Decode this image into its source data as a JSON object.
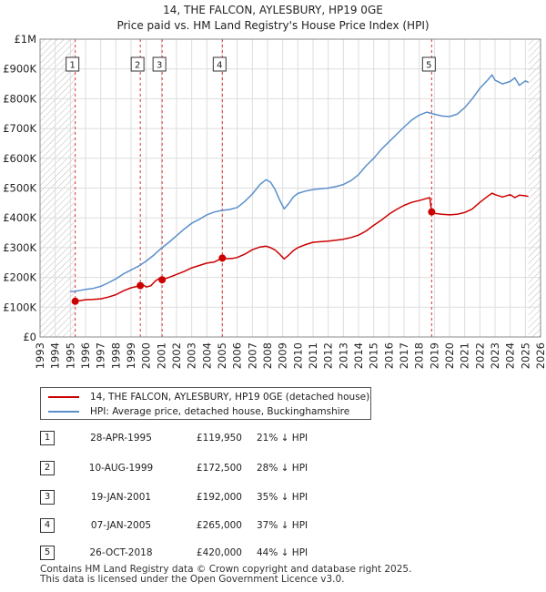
{
  "title": {
    "line1": "14, THE FALCON, AYLESBURY, HP19 0GE",
    "line2": "Price paid vs. HM Land Registry's House Price Index (HPI)"
  },
  "colors": {
    "price_paid": "#cc0000",
    "hpi": "#5b8fcb",
    "hatch": "#bbbbbb",
    "marker_line": "#dd3333",
    "grid": "#dddddd"
  },
  "chart_data": {
    "type": "line",
    "title": "14, THE FALCON, AYLESBURY, HP19 0GE — Price paid vs. HM Land Registry's House Price Index (HPI)",
    "xlabel": "",
    "ylabel": "",
    "xlim": [
      1993,
      2026
    ],
    "ylim": [
      0,
      1000000
    ],
    "x_ticks": [
      1993,
      1994,
      1995,
      1996,
      1997,
      1998,
      1999,
      2000,
      2001,
      2002,
      2003,
      2004,
      2005,
      2006,
      2007,
      2008,
      2009,
      2010,
      2011,
      2012,
      2013,
      2014,
      2015,
      2016,
      2017,
      2018,
      2019,
      2020,
      2021,
      2022,
      2023,
      2024,
      2025,
      2026
    ],
    "y_ticks": [
      {
        "value": 0,
        "label": "£0"
      },
      {
        "value": 100000,
        "label": "£100K"
      },
      {
        "value": 200000,
        "label": "£200K"
      },
      {
        "value": 300000,
        "label": "£300K"
      },
      {
        "value": 400000,
        "label": "£400K"
      },
      {
        "value": 500000,
        "label": "£500K"
      },
      {
        "value": 600000,
        "label": "£600K"
      },
      {
        "value": 700000,
        "label": "£700K"
      },
      {
        "value": 800000,
        "label": "£800K"
      },
      {
        "value": 900000,
        "label": "£900K"
      },
      {
        "value": 1000000,
        "label": "£1M"
      }
    ],
    "grid": true,
    "hatched_ranges": [
      [
        1993,
        1995.32
      ],
      [
        2025.2,
        2026
      ]
    ],
    "series": [
      {
        "name": "14, THE FALCON, AYLESBURY, HP19 0GE (detached house)",
        "color": "#cc0000",
        "x": [
          1995.32,
          1995.6,
          1996,
          1996.5,
          1997,
          1997.5,
          1998,
          1998.5,
          1999,
          1999.61,
          1999.8,
          2000,
          2000.3,
          2000.6,
          2000.9,
          2001.05,
          2001.5,
          2002,
          2002.5,
          2003,
          2003.5,
          2004,
          2004.5,
          2005.02,
          2005.3,
          2005.7,
          2006,
          2006.5,
          2007,
          2007.5,
          2007.9,
          2008.2,
          2008.5,
          2008.8,
          2009.1,
          2009.4,
          2009.7,
          2010,
          2010.5,
          2011,
          2011.5,
          2012,
          2012.5,
          2013,
          2013.5,
          2014,
          2014.5,
          2015,
          2015.5,
          2016,
          2016.5,
          2017,
          2017.5,
          2018,
          2018.4,
          2018.7,
          2018.82,
          2019,
          2019.5,
          2020,
          2020.5,
          2021,
          2021.5,
          2022,
          2022.5,
          2022.8,
          2023,
          2023.5,
          2024,
          2024.3,
          2024.6,
          2025,
          2025.2
        ],
        "y": [
          119950,
          122000,
          125000,
          126000,
          128000,
          134000,
          142000,
          155000,
          165000,
          172500,
          175000,
          168000,
          172000,
          188000,
          198000,
          192000,
          200000,
          210000,
          220000,
          232000,
          240000,
          248000,
          252000,
          265000,
          263000,
          264000,
          267000,
          278000,
          293000,
          302000,
          305000,
          300000,
          292000,
          278000,
          262000,
          275000,
          290000,
          300000,
          310000,
          318000,
          320000,
          322000,
          325000,
          328000,
          334000,
          342000,
          356000,
          375000,
          392000,
          412000,
          428000,
          442000,
          452000,
          458000,
          464000,
          468000,
          420000,
          415000,
          412000,
          410000,
          412000,
          418000,
          430000,
          452000,
          472000,
          483000,
          478000,
          470000,
          478000,
          468000,
          476000,
          474000,
          472000
        ]
      },
      {
        "name": "HPI: Average price, detached house, Buckinghamshire",
        "color": "#5b8fcb",
        "x": [
          1995,
          1995.5,
          1996,
          1996.5,
          1997,
          1997.5,
          1998,
          1998.5,
          1999,
          1999.5,
          2000,
          2000.5,
          2001,
          2001.5,
          2002,
          2002.5,
          2003,
          2003.5,
          2004,
          2004.5,
          2005,
          2005.5,
          2006,
          2006.5,
          2007,
          2007.5,
          2007.9,
          2008.2,
          2008.5,
          2008.8,
          2009.1,
          2009.4,
          2009.7,
          2010,
          2010.5,
          2011,
          2011.5,
          2012,
          2012.5,
          2013,
          2013.5,
          2014,
          2014.5,
          2015,
          2015.5,
          2016,
          2016.5,
          2017,
          2017.5,
          2018,
          2018.5,
          2019,
          2019.5,
          2020,
          2020.5,
          2021,
          2021.5,
          2022,
          2022.5,
          2022.8,
          2023,
          2023.5,
          2024,
          2024.3,
          2024.6,
          2025,
          2025.2
        ],
        "y": [
          152000,
          155000,
          160000,
          163000,
          170000,
          182000,
          195000,
          212000,
          225000,
          238000,
          255000,
          275000,
          298000,
          318000,
          340000,
          362000,
          382000,
          395000,
          410000,
          420000,
          425000,
          428000,
          435000,
          455000,
          480000,
          512000,
          528000,
          520000,
          495000,
          460000,
          430000,
          448000,
          470000,
          482000,
          490000,
          495000,
          498000,
          500000,
          505000,
          512000,
          525000,
          545000,
          575000,
          600000,
          630000,
          655000,
          680000,
          705000,
          728000,
          745000,
          755000,
          748000,
          742000,
          740000,
          748000,
          770000,
          800000,
          835000,
          862000,
          880000,
          862000,
          850000,
          858000,
          870000,
          845000,
          860000,
          855000
        ]
      }
    ],
    "sales": [
      {
        "num": "1",
        "x": 1995.32,
        "price": 119950
      },
      {
        "num": "2",
        "x": 1999.61,
        "price": 172500
      },
      {
        "num": "3",
        "x": 2001.05,
        "price": 192000
      },
      {
        "num": "4",
        "x": 2005.02,
        "price": 265000
      },
      {
        "num": "5",
        "x": 2018.82,
        "price": 420000
      }
    ]
  },
  "legend": {
    "price_paid": "14, THE FALCON, AYLESBURY, HP19 0GE (detached house)",
    "hpi": "HPI: Average price, detached house, Buckinghamshire"
  },
  "sales_table": [
    {
      "num": "1",
      "date": "28-APR-1995",
      "price": "£119,950",
      "hpi_diff": "21% ↓ HPI"
    },
    {
      "num": "2",
      "date": "10-AUG-1999",
      "price": "£172,500",
      "hpi_diff": "28% ↓ HPI"
    },
    {
      "num": "3",
      "date": "19-JAN-2001",
      "price": "£192,000",
      "hpi_diff": "35% ↓ HPI"
    },
    {
      "num": "4",
      "date": "07-JAN-2005",
      "price": "£265,000",
      "hpi_diff": "37% ↓ HPI"
    },
    {
      "num": "5",
      "date": "26-OCT-2018",
      "price": "£420,000",
      "hpi_diff": "44% ↓ HPI"
    }
  ],
  "footer": {
    "line1": "Contains HM Land Registry data © Crown copyright and database right 2025.",
    "line2": "This data is licensed under the Open Government Licence v3.0."
  }
}
